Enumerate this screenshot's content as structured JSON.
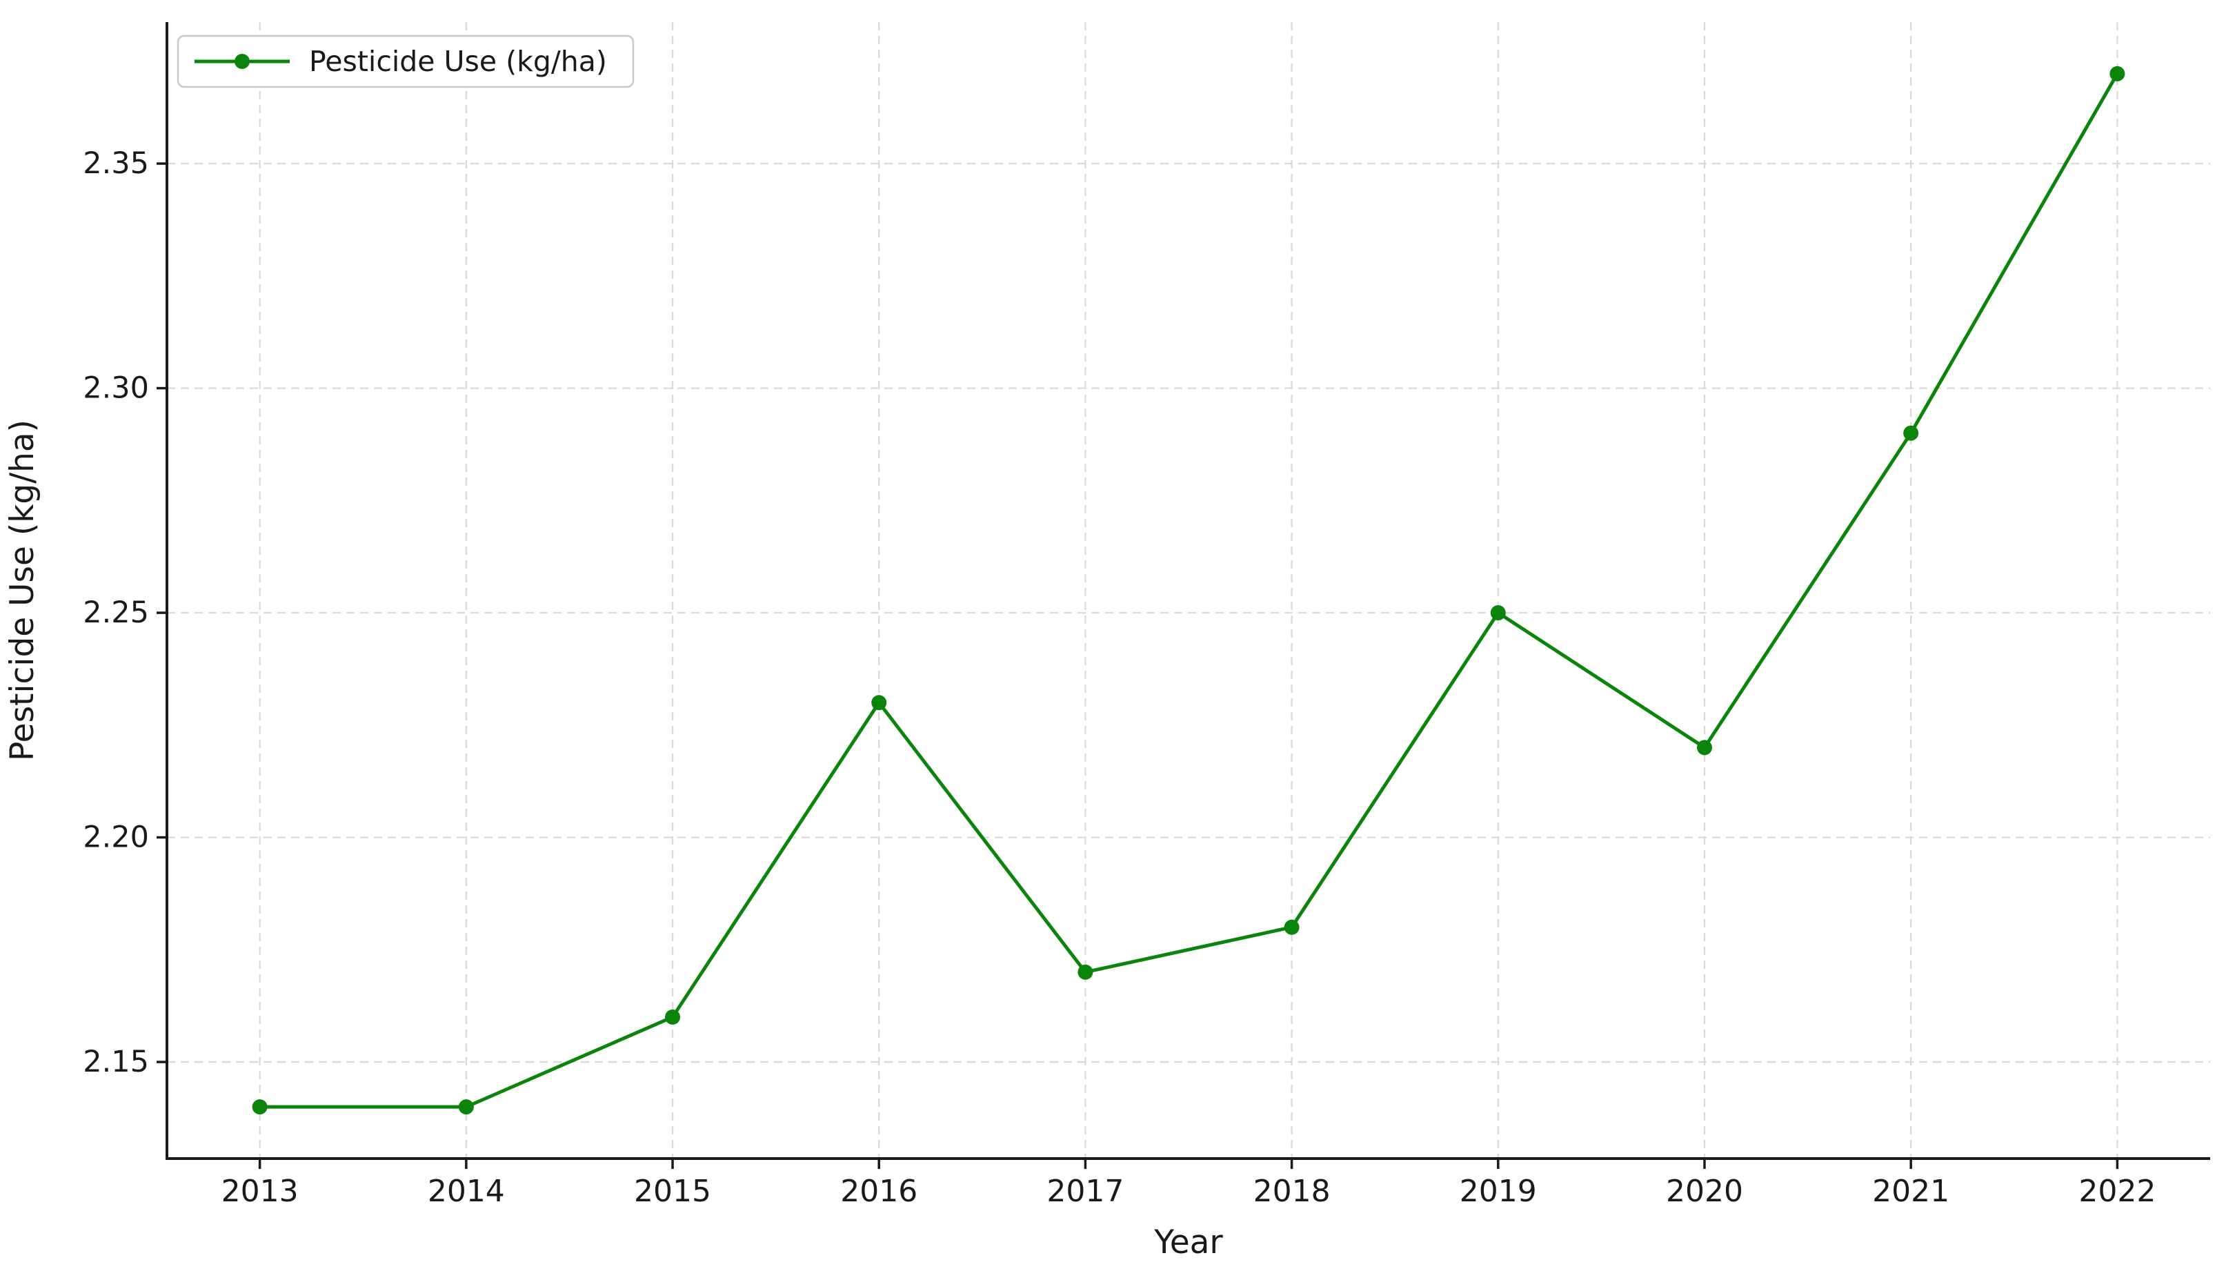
{
  "chart_data": {
    "type": "line",
    "title": "",
    "xlabel": "Year",
    "ylabel": "Pesticide Use (kg/ha)",
    "categories": [
      "2013",
      "2014",
      "2015",
      "2016",
      "2017",
      "2018",
      "2019",
      "2020",
      "2021",
      "2022"
    ],
    "series": [
      {
        "name": "Pesticide Use (kg/ha)",
        "values": [
          2.14,
          2.14,
          2.16,
          2.23,
          2.17,
          2.18,
          2.25,
          2.22,
          2.29,
          2.37
        ],
        "color": "#0b840b",
        "marker": "circle"
      }
    ],
    "yticks": [
      2.15,
      2.2,
      2.25,
      2.3,
      2.35
    ],
    "ytick_labels": [
      "2.15",
      "2.20",
      "2.25",
      "2.30",
      "2.35"
    ],
    "xlim": [
      2012.55,
      2022.45
    ],
    "ylim": [
      2.1285,
      2.3815
    ],
    "x_numeric": [
      2013,
      2014,
      2015,
      2016,
      2017,
      2018,
      2019,
      2020,
      2021,
      2022
    ],
    "grid": "both-dashed",
    "legend": {
      "position": "upper-left",
      "entries": [
        "Pesticide Use (kg/ha)"
      ]
    }
  },
  "style": {
    "background": "#ffffff",
    "line_color": "#0b840b",
    "marker_color": "#0b840b",
    "grid_color": "#d9d9d9",
    "axis_color": "#1a1a1a",
    "text_color": "#1a1a1a",
    "legend_border_color": "#c9c9c9",
    "legend_background": "#ffffff"
  }
}
